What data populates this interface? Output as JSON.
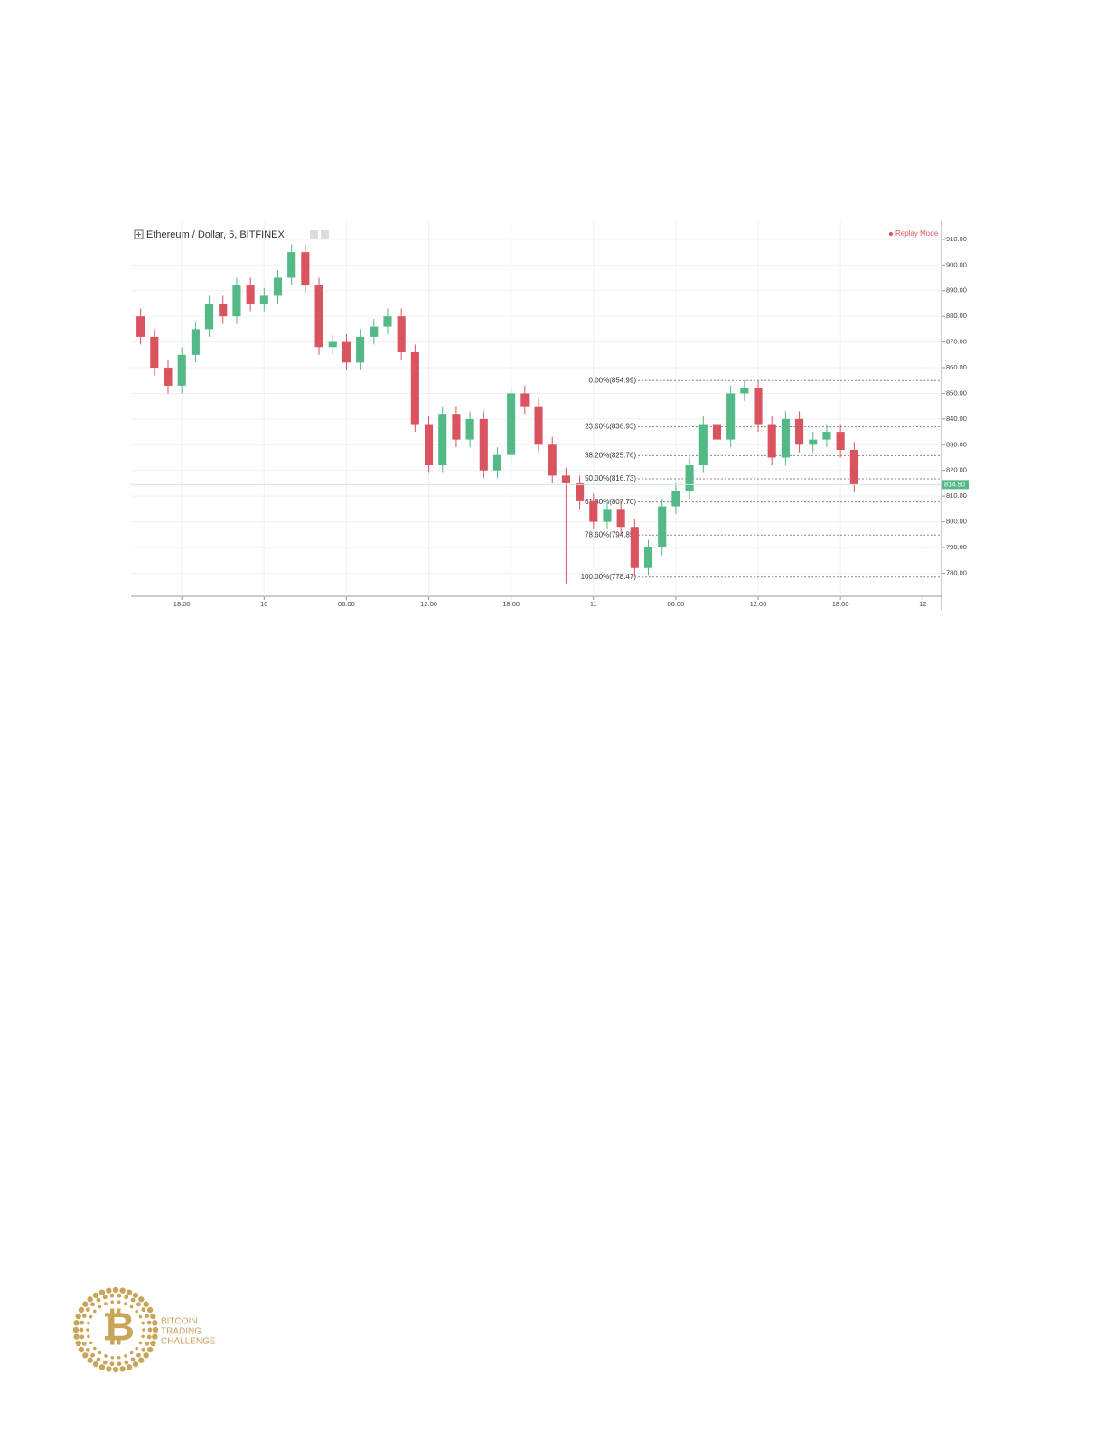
{
  "chart_data": {
    "type": "candlestick",
    "title": "Ethereum / Dollar, 5, BITFINEX",
    "status": "Replay Mode",
    "up_color": "#53b987",
    "down_color": "#d9545f",
    "x": [
      -9,
      -8,
      -7,
      -6,
      -5,
      -4,
      -3,
      -2,
      -1,
      0,
      1,
      2,
      3,
      4,
      5,
      6,
      7,
      8,
      9,
      10,
      11,
      12,
      13,
      14,
      15,
      16,
      17,
      18,
      19,
      20,
      21,
      22,
      23,
      24,
      25,
      26,
      27,
      28,
      29,
      30,
      31,
      32,
      33,
      34,
      35,
      36,
      37,
      38,
      39,
      40,
      41,
      42,
      43
    ],
    "open": [
      880,
      872,
      860,
      853,
      865,
      875,
      885,
      880,
      892,
      885,
      888,
      895,
      905,
      892,
      868,
      870,
      862,
      872,
      876,
      880,
      866,
      838,
      822,
      842,
      832,
      840,
      820,
      826,
      850,
      845,
      830,
      818,
      815,
      808,
      800,
      805,
      798,
      782,
      790,
      806,
      812,
      822,
      838,
      832,
      850,
      852,
      838,
      825,
      840,
      830,
      832,
      835,
      828
    ],
    "high": [
      883,
      875,
      863,
      868,
      878,
      888,
      888,
      895,
      895,
      891,
      898,
      908,
      908,
      895,
      873,
      873,
      875,
      879,
      883,
      883,
      869,
      841,
      845,
      845,
      843,
      843,
      829,
      853,
      853,
      848,
      833,
      821,
      818,
      811,
      808,
      808,
      801,
      793,
      809,
      815,
      825,
      841,
      841,
      853,
      855,
      855,
      841,
      843,
      843,
      835,
      838,
      838,
      831
    ],
    "low": [
      869,
      857,
      850,
      850,
      862,
      872,
      877,
      877,
      882,
      882,
      885,
      892,
      889,
      865,
      865,
      859,
      859,
      869,
      873,
      863,
      835,
      819,
      819,
      829,
      829,
      817,
      817,
      823,
      842,
      827,
      815,
      776,
      805,
      797,
      797,
      795,
      778.5,
      779,
      787,
      803,
      809,
      819,
      829,
      829,
      847,
      835,
      822,
      822,
      827,
      827,
      829,
      825,
      811.5
    ],
    "close": [
      872,
      860,
      853,
      865,
      875,
      885,
      880,
      892,
      885,
      888,
      895,
      905,
      892,
      868,
      870,
      862,
      872,
      876,
      880,
      866,
      838,
      822,
      842,
      832,
      840,
      820,
      826,
      850,
      845,
      830,
      818,
      815,
      808,
      800,
      805,
      798,
      782,
      790,
      806,
      812,
      822,
      838,
      832,
      850,
      852,
      838,
      825,
      840,
      830,
      832,
      835,
      828,
      814.5
    ],
    "xlim": [
      -9.7,
      49.3
    ],
    "xticks": [
      {
        "value": -6,
        "label": "18:00"
      },
      {
        "value": 0,
        "label": "10"
      },
      {
        "value": 6,
        "label": "06:00"
      },
      {
        "value": 12,
        "label": "12:00"
      },
      {
        "value": 18,
        "label": "18:00"
      },
      {
        "value": 24,
        "label": "11"
      },
      {
        "value": 30,
        "label": "06:00"
      },
      {
        "value": 36,
        "label": "12:00"
      },
      {
        "value": 42,
        "label": "18:00"
      },
      {
        "value": 48,
        "label": "12"
      }
    ],
    "ylim": [
      771,
      917
    ],
    "yticks": [
      {
        "value": 780,
        "label": "780.00"
      },
      {
        "value": 790,
        "label": "790.00"
      },
      {
        "value": 800,
        "label": "800.00"
      },
      {
        "value": 810,
        "label": "810.00"
      },
      {
        "value": 820,
        "label": "820.00"
      },
      {
        "value": 830,
        "label": "830.00"
      },
      {
        "value": 840,
        "label": "840.00"
      },
      {
        "value": 850,
        "label": "850.00"
      },
      {
        "value": 860,
        "label": "860.00"
      },
      {
        "value": 870,
        "label": "870.00"
      },
      {
        "value": 880,
        "label": "880.00"
      },
      {
        "value": 890,
        "label": "890.00"
      },
      {
        "value": 900,
        "label": "900.00"
      },
      {
        "value": 910,
        "label": "910.00"
      }
    ],
    "grid": true,
    "fib_levels": [
      {
        "value": 854.99,
        "label": "0.00%(854.99)"
      },
      {
        "value": 836.93,
        "label": "23.60%(836.93)"
      },
      {
        "value": 825.76,
        "label": "38.20%(825.76)"
      },
      {
        "value": 816.73,
        "label": "50.00%(816.73)"
      },
      {
        "value": 807.7,
        "label": "61.80%(807.70)"
      },
      {
        "value": 794.85,
        "label": "78.60%(794.85)"
      },
      {
        "value": 778.47,
        "label": "100.00%(778.47)"
      }
    ],
    "last_price": {
      "value": 814.5,
      "label": "814.50"
    }
  },
  "logo": {
    "mark": "₿",
    "lines": [
      "BITCOIN",
      "TRADING",
      "CHALLENGE"
    ]
  }
}
